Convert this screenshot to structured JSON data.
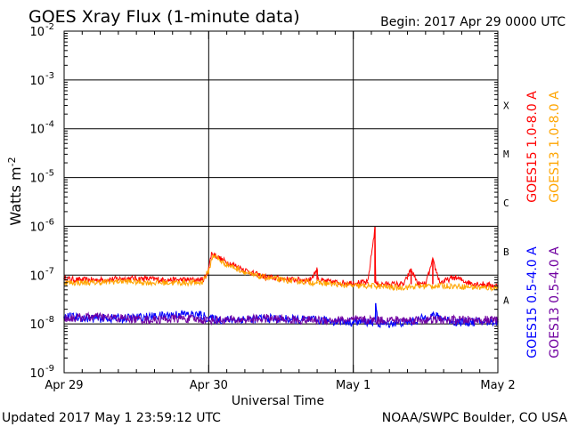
{
  "chart_data": {
    "type": "line",
    "title": "GOES Xray Flux (1-minute data)",
    "begin_label": "Begin:  2017 Apr 29 0000 UTC",
    "xlabel": "Universal Time",
    "ylabel": "Watts m",
    "ylabel_exponent": "-2",
    "x_ticks": [
      "Apr 29",
      "Apr 30",
      "May 1",
      "May 2"
    ],
    "x_range_days": [
      0,
      3
    ],
    "y_scale": "log",
    "y_ticks": [
      {
        "base": "10",
        "exp": "-2"
      },
      {
        "base": "10",
        "exp": "-3"
      },
      {
        "base": "10",
        "exp": "-4"
      },
      {
        "base": "10",
        "exp": "-5"
      },
      {
        "base": "10",
        "exp": "-6"
      },
      {
        "base": "10",
        "exp": "-7"
      },
      {
        "base": "10",
        "exp": "-8"
      },
      {
        "base": "10",
        "exp": "-9"
      }
    ],
    "ylim": [
      1e-09,
      0.01
    ],
    "flare_classes": [
      "X",
      "M",
      "C",
      "B",
      "A"
    ],
    "grid": "horizontal lines at decades",
    "legend_placement": "right, rotated vertical",
    "series": [
      {
        "name": "GOES15 1.0-8.0 A",
        "color": "#ff0000",
        "x": [
          0,
          0.1,
          0.25,
          0.4,
          0.55,
          0.7,
          0.85,
          0.95,
          0.98,
          1.0,
          1.02,
          1.04,
          1.1,
          1.2,
          1.3,
          1.4,
          1.5,
          1.6,
          1.7,
          1.75,
          1.76,
          1.8,
          1.9,
          2.0,
          2.1,
          2.15,
          2.155,
          2.17,
          2.25,
          2.35,
          2.4,
          2.45,
          2.5,
          2.55,
          2.6,
          2.7,
          2.8,
          2.9,
          3.0
        ],
        "y": [
          8.5e-08,
          8e-08,
          8e-08,
          8.5e-08,
          8.5e-08,
          8e-08,
          8e-08,
          8e-08,
          9e-08,
          1.4e-07,
          2.8e-07,
          2.6e-07,
          2e-07,
          1.5e-07,
          1.1e-07,
          9e-08,
          8.5e-08,
          8e-08,
          8e-08,
          1.3e-07,
          8e-08,
          7.5e-08,
          7e-08,
          7e-08,
          7e-08,
          9.5e-07,
          7e-08,
          6.5e-08,
          6.5e-08,
          6.5e-08,
          1.3e-07,
          6.5e-08,
          6.5e-08,
          2e-07,
          7e-08,
          9e-08,
          7e-08,
          6.5e-08,
          6e-08
        ]
      },
      {
        "name": "GOES13 1.0-8.0 A",
        "color": "#ffa500",
        "x": [
          0,
          0.2,
          0.4,
          0.6,
          0.8,
          0.95,
          1.0,
          1.03,
          1.1,
          1.3,
          1.5,
          1.75,
          2.0,
          2.15,
          2.3,
          2.5,
          2.7,
          2.9,
          3.0
        ],
        "y": [
          7e-08,
          7e-08,
          7.5e-08,
          7e-08,
          7e-08,
          7e-08,
          1.2e-07,
          2.6e-07,
          1.8e-07,
          1e-07,
          8e-08,
          7e-08,
          6e-08,
          6e-08,
          5.5e-08,
          6e-08,
          6e-08,
          5.5e-08,
          5.5e-08
        ]
      },
      {
        "name": "GOES15 0.5-4.0 A",
        "color": "#0000ff",
        "x": [
          0,
          0.2,
          0.4,
          0.6,
          0.8,
          0.95,
          1.0,
          1.1,
          1.4,
          1.7,
          2.0,
          2.1,
          2.15,
          2.155,
          2.17,
          2.4,
          2.55,
          2.7,
          3.0
        ],
        "y": [
          1.4e-08,
          1.3e-08,
          1.3e-08,
          1.4e-08,
          1.6e-08,
          1.5e-08,
          1.3e-08,
          1.2e-08,
          1.3e-08,
          1.2e-08,
          1.1e-08,
          1.1e-08,
          1.1e-08,
          2.6e-08,
          1e-08,
          1.1e-08,
          1.5e-08,
          1.1e-08,
          1.1e-08
        ]
      },
      {
        "name": "GOES13 0.5-4.0 A",
        "color": "#7000a0",
        "x": [
          0,
          0.2,
          0.4,
          0.6,
          0.8,
          1.0,
          1.2,
          1.4,
          1.6,
          1.8,
          2.0,
          2.2,
          2.4,
          2.6,
          2.8,
          3.0
        ],
        "y": [
          1.3e-08,
          1.4e-08,
          1.3e-08,
          1.2e-08,
          1.3e-08,
          1.2e-08,
          1.2e-08,
          1.3e-08,
          1.2e-08,
          1.2e-08,
          1.2e-08,
          1.2e-08,
          1.2e-08,
          1.2e-08,
          1.2e-08,
          1.2e-08
        ]
      }
    ]
  },
  "footer": {
    "updated": "Updated 2017 May  1 23:59:12 UTC",
    "credit": "NOAA/SWPC Boulder, CO USA"
  }
}
